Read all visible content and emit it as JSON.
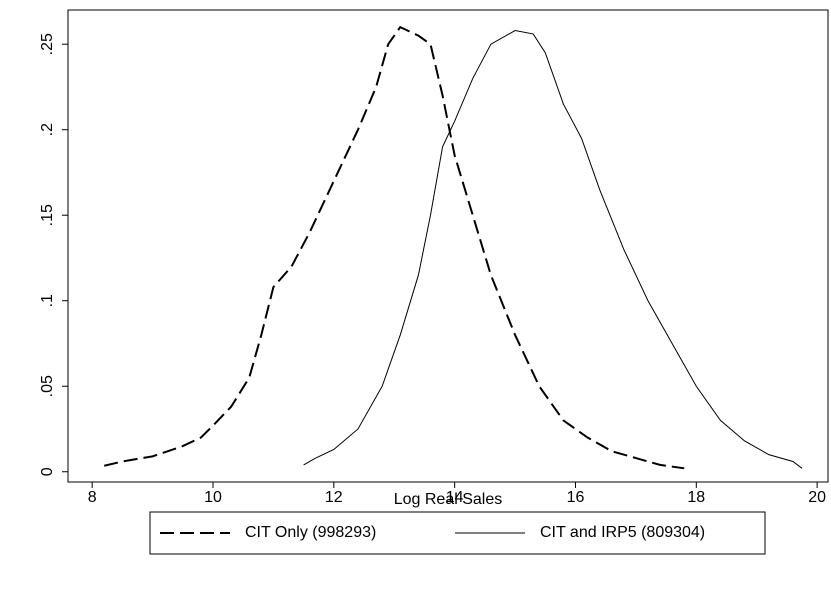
{
  "chart_data": {
    "type": "line",
    "xlabel": "Log Real Sales",
    "xlim": [
      7.6,
      20.18
    ],
    "ylim": [
      -0.006,
      0.27
    ],
    "xticks": [
      8,
      10,
      12,
      14,
      16,
      18,
      20
    ],
    "yticks": [
      0,
      {
        "value": 0.05,
        "label": ".05"
      },
      {
        "value": 0.1,
        "label": ".1"
      },
      {
        "value": 0.15,
        "label": ".15"
      },
      {
        "value": 0.2,
        "label": ".2"
      },
      {
        "value": 0.25,
        "label": ".25"
      }
    ],
    "grid": false,
    "legend": "bottom",
    "series": [
      {
        "name": "CIT Only (998293)",
        "color": "#000000",
        "style": "dashed",
        "x": [
          8.2,
          8.5,
          9.0,
          9.5,
          9.8,
          10.0,
          10.3,
          10.6,
          10.8,
          11.0,
          11.3,
          11.6,
          12.0,
          12.4,
          12.7,
          12.9,
          13.1,
          13.4,
          13.6,
          13.8,
          14.0,
          14.3,
          14.6,
          15.0,
          15.4,
          15.8,
          16.2,
          16.6,
          17.0,
          17.4,
          17.8
        ],
        "values": [
          0.0035,
          0.006,
          0.009,
          0.015,
          0.02,
          0.027,
          0.038,
          0.055,
          0.08,
          0.108,
          0.12,
          0.14,
          0.17,
          0.2,
          0.225,
          0.25,
          0.26,
          0.255,
          0.25,
          0.22,
          0.185,
          0.15,
          0.115,
          0.08,
          0.05,
          0.03,
          0.02,
          0.012,
          0.008,
          0.004,
          0.002
        ]
      },
      {
        "name": "CIT and IRP5 (809304)",
        "color": "#000000",
        "style": "solid",
        "x": [
          11.5,
          11.7,
          12.0,
          12.4,
          12.8,
          13.1,
          13.4,
          13.6,
          13.8,
          14.0,
          14.3,
          14.6,
          15.0,
          15.3,
          15.5,
          15.8,
          16.1,
          16.4,
          16.8,
          17.2,
          17.6,
          18.0,
          18.4,
          18.8,
          19.2,
          19.6,
          19.75
        ],
        "values": [
          0.004,
          0.008,
          0.013,
          0.025,
          0.05,
          0.08,
          0.115,
          0.15,
          0.19,
          0.205,
          0.23,
          0.25,
          0.258,
          0.256,
          0.245,
          0.215,
          0.195,
          0.165,
          0.13,
          0.1,
          0.075,
          0.05,
          0.03,
          0.018,
          0.01,
          0.006,
          0.002
        ]
      }
    ]
  }
}
